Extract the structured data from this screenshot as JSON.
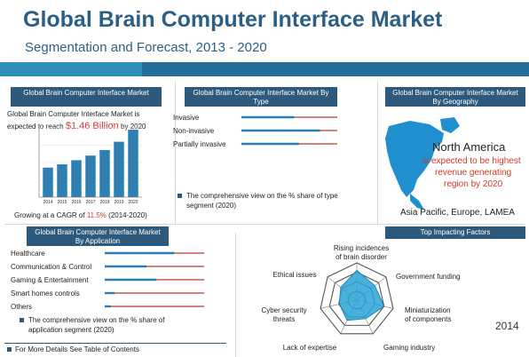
{
  "header": {
    "title": "Global Brain Computer Interface Market",
    "subtitle": "Segmentation and Forecast, 2013 - 2020"
  },
  "market_panel": {
    "heading": "Global Brain Computer Interface Market",
    "text_line1": "Global Brain Computer Interface Market is",
    "text_prefix": "expected to reach",
    "value": "$1.46 Billion",
    "text_suffix": "by 2020",
    "cagr_prefix": "Growing at a CAGR of",
    "cagr_value": "11.5%",
    "cagr_period": "(2014-2020)"
  },
  "type_panel": {
    "heading": "Global Brain Computer Interface Market By Type",
    "note": "The comprehensive view on the % share of type segment (2020)"
  },
  "geo_panel": {
    "heading": "Global Brain Computer Interface Market By Geography",
    "region": "North America",
    "desc1": "is expected to be highest",
    "desc2": "revenue generating",
    "desc3": "region by 2020",
    "others": "Asia Pacific, Europe, LAMEA"
  },
  "app_panel": {
    "heading": "Global Brain Computer Interface Market By Application",
    "note1": "The comprehensive view on the % share of",
    "note2": "application segment (2020)"
  },
  "factors_panel": {
    "heading": "Top Impacting Factors"
  },
  "footer": {
    "link": "For More Details See Table of Contents",
    "year": "2014"
  },
  "colors": {
    "navy": "#2d5a7c",
    "blue": "#2b7bb9",
    "red": "#c0392b",
    "bar": "#2f7fb3",
    "radar_fill": "#29a3d6"
  },
  "chart_data": [
    {
      "type": "bar",
      "categories": [
        "2014",
        "2015",
        "2016",
        "2017",
        "2018",
        "2019",
        "2020"
      ],
      "values": [
        0.64,
        0.71,
        0.8,
        0.9,
        1.02,
        1.2,
        1.46
      ],
      "ylim": [
        0,
        1.5
      ]
    },
    {
      "type": "bar",
      "orientation": "horizontal",
      "categories": [
        "Invasive",
        "Non-invasive",
        "Partially invasive"
      ],
      "values": [
        0.55,
        0.82,
        0.6
      ]
    },
    {
      "type": "bar",
      "orientation": "horizontal",
      "categories": [
        "Healthcare",
        "Communication & Control",
        "Gaming & Entertainment",
        "Smart homes controls",
        "Others"
      ],
      "values": [
        0.7,
        0.42,
        0.52,
        0.1,
        0.06
      ]
    },
    {
      "type": "radar",
      "axes": [
        "Rising incidences of brain disorder",
        "Government funding",
        "Miniaturization of components",
        "Gaming industry",
        "Lack of expertise",
        "Cyber security threats",
        "Ethical issues"
      ],
      "values": [
        0.8,
        0.62,
        0.75,
        0.55,
        0.6,
        0.48,
        0.55
      ],
      "rmax": 1
    }
  ]
}
